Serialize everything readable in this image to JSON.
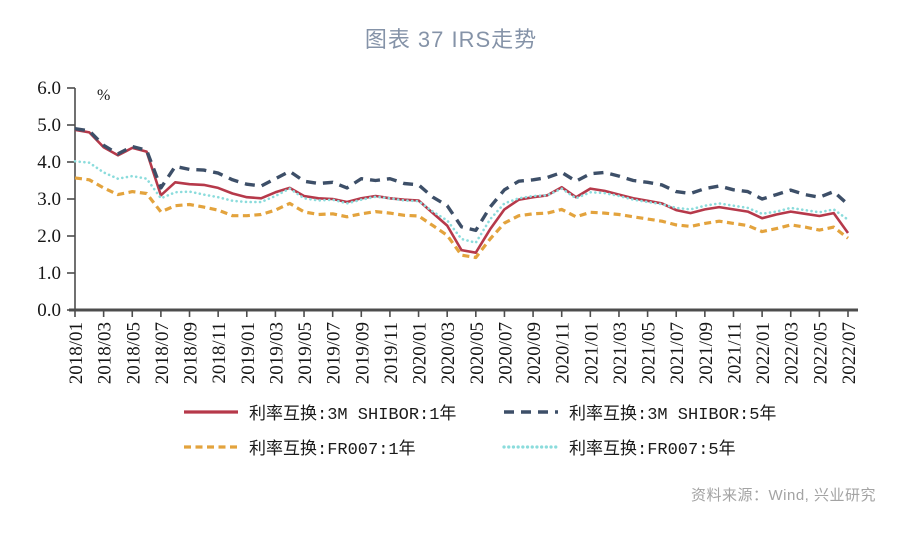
{
  "title": "图表 37 IRS走势",
  "source_note": "资料来源：Wind, 兴业研究",
  "colors": {
    "title": "#8593a8",
    "axis": "#4d4d4d",
    "tick_label": "#161616",
    "source_text": "#a3a3a3"
  },
  "chart_data": {
    "type": "line",
    "title": "图表 37 IRS走势",
    "unit_label": "%",
    "xlabel": "",
    "ylabel": "",
    "ylim": [
      0.0,
      6.0
    ],
    "ytick_step": 1.0,
    "ytick_labels": [
      "0.0",
      "1.0",
      "2.0",
      "3.0",
      "4.0",
      "5.0",
      "6.0"
    ],
    "grid": false,
    "legend_position": "bottom",
    "x_label_every": 2,
    "x_tick_labels": [
      "2018/01",
      "2018/03",
      "2018/05",
      "2018/07",
      "2018/09",
      "2018/11",
      "2019/01",
      "2019/03",
      "2019/05",
      "2019/07",
      "2019/09",
      "2019/11",
      "2020/01",
      "2020/03",
      "2020/05",
      "2020/07",
      "2020/09",
      "2020/11",
      "2021/01",
      "2021/03",
      "2021/05",
      "2021/07",
      "2021/09",
      "2021/11",
      "2022/01",
      "2022/03",
      "2022/05",
      "2022/07"
    ],
    "x_months": [
      "2018/01",
      "2018/02",
      "2018/03",
      "2018/04",
      "2018/05",
      "2018/06",
      "2018/07",
      "2018/08",
      "2018/09",
      "2018/10",
      "2018/11",
      "2018/12",
      "2019/01",
      "2019/02",
      "2019/03",
      "2019/04",
      "2019/05",
      "2019/06",
      "2019/07",
      "2019/08",
      "2019/09",
      "2019/10",
      "2019/11",
      "2019/12",
      "2020/01",
      "2020/02",
      "2020/03",
      "2020/04",
      "2020/05",
      "2020/06",
      "2020/07",
      "2020/08",
      "2020/09",
      "2020/10",
      "2020/11",
      "2020/12",
      "2021/01",
      "2021/02",
      "2021/03",
      "2021/04",
      "2021/05",
      "2021/06",
      "2021/07",
      "2021/08",
      "2021/09",
      "2021/10",
      "2021/11",
      "2021/12",
      "2022/01",
      "2022/02",
      "2022/03",
      "2022/04",
      "2022/05",
      "2022/06",
      "2022/07"
    ],
    "series": [
      {
        "name": "利率互换:3M SHIBOR:1年",
        "color": "#b6394a",
        "style": "solid",
        "width": 2.6,
        "values": [
          4.87,
          4.8,
          4.4,
          4.18,
          4.38,
          4.28,
          3.1,
          3.45,
          3.4,
          3.38,
          3.3,
          3.15,
          3.05,
          3.02,
          3.18,
          3.3,
          3.08,
          3.02,
          3.0,
          2.92,
          3.02,
          3.08,
          3.02,
          2.98,
          2.96,
          2.62,
          2.28,
          1.62,
          1.55,
          2.18,
          2.72,
          2.98,
          3.05,
          3.1,
          3.32,
          3.05,
          3.28,
          3.22,
          3.12,
          3.02,
          2.95,
          2.88,
          2.7,
          2.62,
          2.72,
          2.78,
          2.72,
          2.66,
          2.48,
          2.58,
          2.66,
          2.6,
          2.54,
          2.62,
          2.08
        ]
      },
      {
        "name": "利率互换:3M SHIBOR:5年",
        "color": "#3d4f68",
        "style": "dashed",
        "width": 3.4,
        "values": [
          4.9,
          4.84,
          4.45,
          4.22,
          4.42,
          4.32,
          3.3,
          3.88,
          3.8,
          3.78,
          3.7,
          3.52,
          3.4,
          3.35,
          3.55,
          3.75,
          3.48,
          3.42,
          3.45,
          3.3,
          3.55,
          3.5,
          3.55,
          3.42,
          3.38,
          3.05,
          2.82,
          2.25,
          2.15,
          2.78,
          3.25,
          3.48,
          3.52,
          3.58,
          3.72,
          3.48,
          3.68,
          3.72,
          3.62,
          3.5,
          3.45,
          3.38,
          3.2,
          3.15,
          3.28,
          3.35,
          3.25,
          3.2,
          3.0,
          3.12,
          3.24,
          3.12,
          3.05,
          3.2,
          2.85
        ]
      },
      {
        "name": "利率互换:FR007:1年",
        "color": "#e3a33d",
        "style": "dashed-short",
        "width": 3.2,
        "values": [
          3.57,
          3.52,
          3.3,
          3.12,
          3.2,
          3.15,
          2.65,
          2.82,
          2.85,
          2.78,
          2.7,
          2.55,
          2.55,
          2.58,
          2.7,
          2.88,
          2.65,
          2.58,
          2.6,
          2.52,
          2.6,
          2.66,
          2.62,
          2.56,
          2.54,
          2.28,
          2.02,
          1.48,
          1.42,
          1.92,
          2.35,
          2.55,
          2.6,
          2.62,
          2.72,
          2.52,
          2.64,
          2.62,
          2.58,
          2.52,
          2.46,
          2.4,
          2.3,
          2.26,
          2.34,
          2.4,
          2.34,
          2.28,
          2.12,
          2.2,
          2.3,
          2.24,
          2.16,
          2.24,
          1.94
        ]
      },
      {
        "name": "利率互换:FR007:5年",
        "color": "#8bdcdc",
        "style": "dotted",
        "width": 2.6,
        "values": [
          4.02,
          3.98,
          3.72,
          3.55,
          3.62,
          3.55,
          3.02,
          3.18,
          3.2,
          3.12,
          3.05,
          2.95,
          2.92,
          2.92,
          3.08,
          3.28,
          3.02,
          2.96,
          2.98,
          2.88,
          2.98,
          3.06,
          3.02,
          2.96,
          2.94,
          2.66,
          2.42,
          1.92,
          1.82,
          2.45,
          2.88,
          3.02,
          3.08,
          3.1,
          3.28,
          3.02,
          3.18,
          3.16,
          3.08,
          2.98,
          2.92,
          2.86,
          2.76,
          2.72,
          2.82,
          2.88,
          2.82,
          2.76,
          2.6,
          2.66,
          2.76,
          2.7,
          2.64,
          2.72,
          2.44
        ]
      }
    ]
  }
}
